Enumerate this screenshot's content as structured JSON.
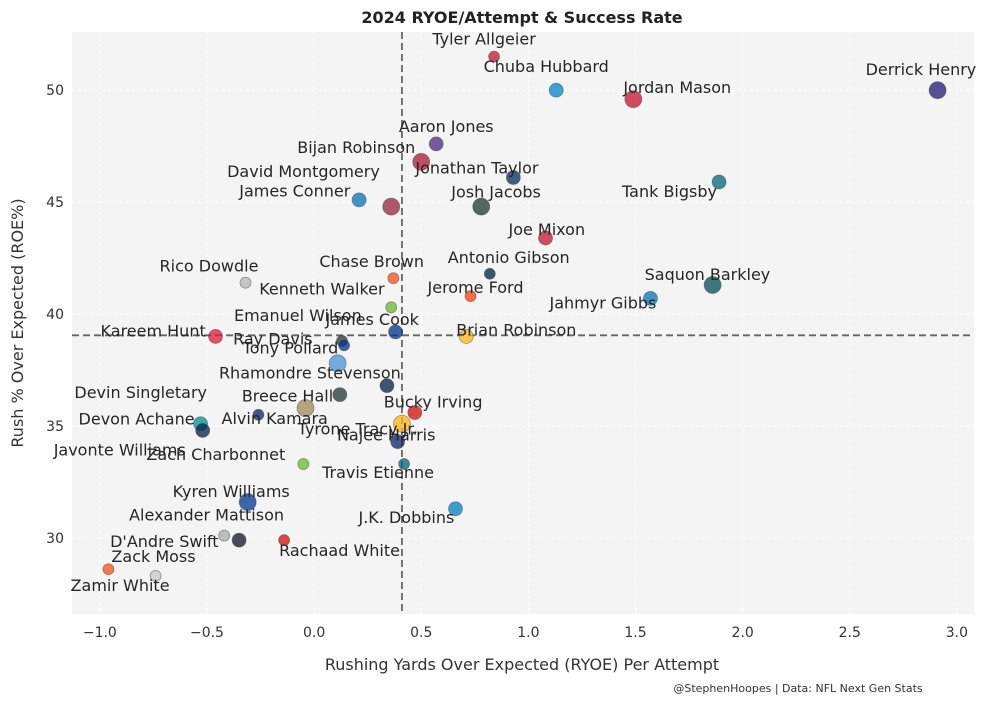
{
  "chart_data": {
    "type": "scatter",
    "title": "2024 RYOE/Attempt & Success Rate",
    "xlabel": "Rushing Yards Over Expected (RYOE) Per Attempt",
    "ylabel": "Rush % Over Expected (ROE%)",
    "xlim": [
      -1.13,
      3.08
    ],
    "ylim": [
      26.6,
      52.6
    ],
    "xticks": [
      -1.0,
      -0.5,
      0.0,
      0.5,
      1.0,
      1.5,
      2.0,
      2.5,
      3.0
    ],
    "xtick_labels": [
      "−1.0",
      "−0.5",
      "0.0",
      "0.5",
      "1.0",
      "1.5",
      "2.0",
      "2.5",
      "3.0"
    ],
    "yticks": [
      30,
      35,
      40,
      45,
      50
    ],
    "ytick_labels": [
      "30",
      "35",
      "40",
      "45",
      "50"
    ],
    "grid": true,
    "reference_lines": {
      "x": 0.41,
      "y": 39.05
    },
    "credit": "@StephenHoopes | Data: NFL Next Gen Stats",
    "points": [
      {
        "name": "Tyler Allgeier",
        "x": 0.84,
        "y": 51.5,
        "color": "#C8102E",
        "size": "small"
      },
      {
        "name": "Chuba Hubbard",
        "x": 1.13,
        "y": 50.0,
        "color": "#0085CA",
        "size": "medium"
      },
      {
        "name": "Jordan Mason",
        "x": 1.49,
        "y": 49.6,
        "color": "#C8102E",
        "size": "large"
      },
      {
        "name": "Derrick Henry",
        "x": 2.91,
        "y": 50.0,
        "color": "#241773",
        "size": "large"
      },
      {
        "name": "Aaron Jones",
        "x": 0.57,
        "y": 47.6,
        "color": "#4F2683",
        "size": "medium"
      },
      {
        "name": "Bijan Robinson",
        "x": 0.5,
        "y": 46.8,
        "color": "#A71930",
        "size": "large"
      },
      {
        "name": "Jonathan Taylor",
        "x": 0.93,
        "y": 46.1,
        "color": "#002C5F",
        "size": "medium"
      },
      {
        "name": "Tank Bigsby",
        "x": 1.89,
        "y": 45.9,
        "color": "#006778",
        "size": "medium"
      },
      {
        "name": "David Montgomery",
        "x": 0.21,
        "y": 45.1,
        "color": "#0076B6",
        "size": "medium"
      },
      {
        "name": "James Conner",
        "x": 0.36,
        "y": 44.8,
        "color": "#97233F",
        "size": "large"
      },
      {
        "name": "Josh Jacobs",
        "x": 0.78,
        "y": 44.8,
        "color": "#203731",
        "size": "large"
      },
      {
        "name": "Joe Mixon",
        "x": 1.08,
        "y": 43.4,
        "color": "#C8102E",
        "size": "medium"
      },
      {
        "name": "Antonio Gibson",
        "x": 0.82,
        "y": 41.8,
        "color": "#002244",
        "size": "small"
      },
      {
        "name": "Rico Dowdle",
        "x": -0.32,
        "y": 41.4,
        "color": "#B0B7BC",
        "size": "small"
      },
      {
        "name": "Chase Brown",
        "x": 0.37,
        "y": 41.6,
        "color": "#FB4F14",
        "size": "small"
      },
      {
        "name": "Saquon Barkley",
        "x": 1.86,
        "y": 41.3,
        "color": "#004C54",
        "size": "large"
      },
      {
        "name": "Jerome Ford",
        "x": 0.73,
        "y": 40.8,
        "color": "#FF3C00",
        "size": "small"
      },
      {
        "name": "Jahmyr Gibbs",
        "x": 1.57,
        "y": 40.7,
        "color": "#0076B6",
        "size": "medium"
      },
      {
        "name": "Kenneth Walker",
        "x": 0.36,
        "y": 40.3,
        "color": "#69BE28",
        "size": "small"
      },
      {
        "name": "James Cook",
        "x": 0.38,
        "y": 39.2,
        "color": "#00338D",
        "size": "medium"
      },
      {
        "name": "Brian Robinson",
        "x": 0.71,
        "y": 39.0,
        "color": "#FFB612",
        "size": "medium"
      },
      {
        "name": "Kareem Hunt",
        "x": -0.46,
        "y": 39.0,
        "color": "#E31837",
        "size": "medium"
      },
      {
        "name": "Emanuel Wilson",
        "x": 0.13,
        "y": 38.8,
        "color": "#203731",
        "size": "small"
      },
      {
        "name": "Ray Davis",
        "x": 0.14,
        "y": 38.6,
        "color": "#00338D",
        "size": "small"
      },
      {
        "name": "Tony Pollard",
        "x": 0.11,
        "y": 37.8,
        "color": "#4B92DB",
        "size": "large"
      },
      {
        "name": "Rhamondre Stevenson",
        "x": 0.34,
        "y": 36.8,
        "color": "#002244",
        "size": "medium"
      },
      {
        "name": "Breece Hall",
        "x": 0.12,
        "y": 36.4,
        "color": "#203731",
        "size": "medium"
      },
      {
        "name": "Alvin Kamara",
        "x": -0.04,
        "y": 35.8,
        "color": "#9F8958",
        "size": "large"
      },
      {
        "name": "Bucky Irving",
        "x": 0.47,
        "y": 35.6,
        "color": "#D50A0A",
        "size": "medium"
      },
      {
        "name": "Devin Singletary",
        "x": -0.26,
        "y": 35.5,
        "color": "#0B2265",
        "size": "small"
      },
      {
        "name": "Najee Harris",
        "x": 0.41,
        "y": 35.1,
        "color": "#FFB612",
        "size": "large"
      },
      {
        "name": "Devon Achane",
        "x": -0.53,
        "y": 35.1,
        "color": "#008E97",
        "size": "medium"
      },
      {
        "name": "Javonte Williams",
        "x": -0.52,
        "y": 34.8,
        "color": "#002244",
        "size": "medium"
      },
      {
        "name": "Tyrone Tracy Jr.",
        "x": 0.39,
        "y": 34.3,
        "color": "#0B2265",
        "size": "medium"
      },
      {
        "name": "Zach Charbonnet",
        "x": -0.05,
        "y": 33.3,
        "color": "#69BE28",
        "size": "small"
      },
      {
        "name": "Travis Etienne",
        "x": 0.42,
        "y": 33.3,
        "color": "#006778",
        "size": "small"
      },
      {
        "name": "Kyren Williams",
        "x": -0.31,
        "y": 31.6,
        "color": "#003594",
        "size": "large"
      },
      {
        "name": "J.K. Dobbins",
        "x": 0.66,
        "y": 31.3,
        "color": "#0080C6",
        "size": "medium"
      },
      {
        "name": "Alexander Mattison",
        "x": -0.42,
        "y": 30.1,
        "color": "#A5ACAF",
        "size": "small"
      },
      {
        "name": "D'Andre Swift",
        "x": -0.35,
        "y": 29.9,
        "color": "#0B162A",
        "size": "medium"
      },
      {
        "name": "Rachaad White",
        "x": -0.14,
        "y": 29.9,
        "color": "#D50A0A",
        "size": "small"
      },
      {
        "name": "Zack Moss",
        "x": -0.96,
        "y": 28.6,
        "color": "#FB4F14",
        "size": "small"
      },
      {
        "name": "Zamir White",
        "x": -0.74,
        "y": 28.3,
        "color": "#C4C8CB",
        "size": "small"
      }
    ]
  }
}
